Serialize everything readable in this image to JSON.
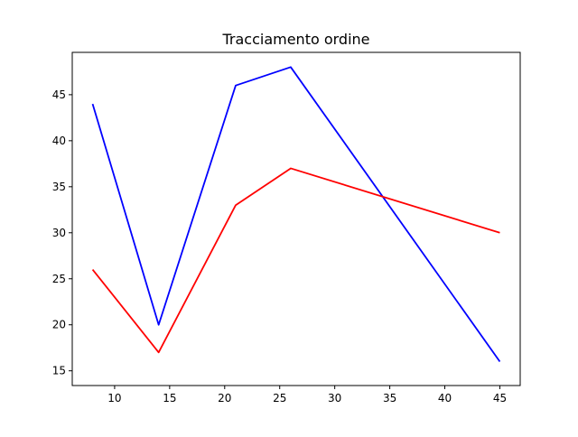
{
  "chart_data": {
    "type": "line",
    "title": "Tracciamento ordine",
    "xlabel": "",
    "ylabel": "",
    "x": [
      8,
      14,
      21,
      26,
      45
    ],
    "series": [
      {
        "values": [
          44,
          20,
          46,
          48,
          16
        ],
        "color": "#0000ff"
      },
      {
        "values": [
          26,
          17,
          33,
          37,
          30
        ],
        "color": "#ff0000"
      }
    ],
    "xlim": [
      6.15,
      46.85
    ],
    "ylim": [
      13.4,
      49.6
    ],
    "xticks": [
      10,
      15,
      20,
      25,
      30,
      35,
      40,
      45
    ],
    "yticks": [
      15,
      20,
      25,
      30,
      35,
      40,
      45
    ],
    "grid": false,
    "legend": "none"
  }
}
